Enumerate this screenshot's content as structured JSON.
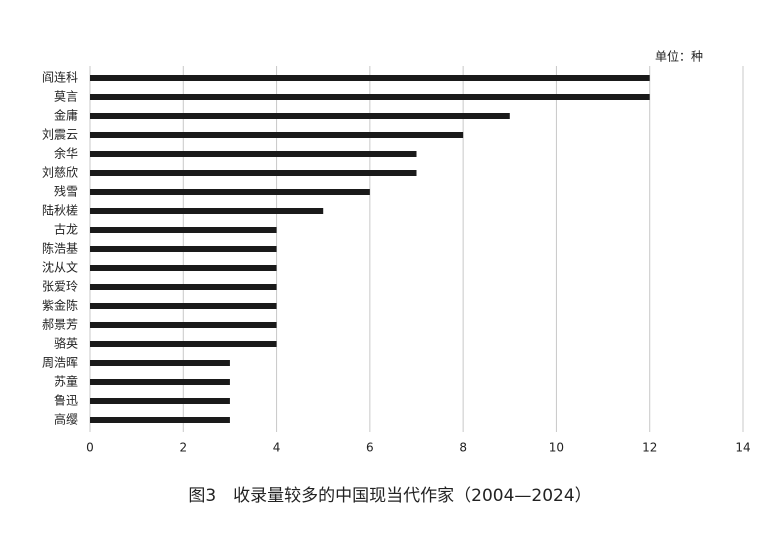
{
  "chart_data": {
    "type": "bar",
    "unit_label": "单位：种",
    "caption": "图3　收录量较多的中国现当代作家（2004—2024）",
    "categories": [
      "阎连科",
      "莫言",
      "金庸",
      "刘震云",
      "余华",
      "刘慈欣",
      "残雪",
      "陆秋槎",
      "古龙",
      "陈浩基",
      "沈从文",
      "张爱玲",
      "紫金陈",
      "郝景芳",
      "骆英",
      "周浩晖",
      "苏童",
      "鲁迅",
      "高缨"
    ],
    "values": [
      12,
      12,
      9,
      8,
      7,
      7,
      6,
      5,
      4,
      4,
      4,
      4,
      4,
      4,
      4,
      3,
      3,
      3,
      3
    ],
    "color": "#1a1a1a",
    "xlim": [
      0,
      14
    ],
    "xticks": [
      0,
      2,
      4,
      6,
      8,
      10,
      12,
      14
    ],
    "grid": true
  }
}
